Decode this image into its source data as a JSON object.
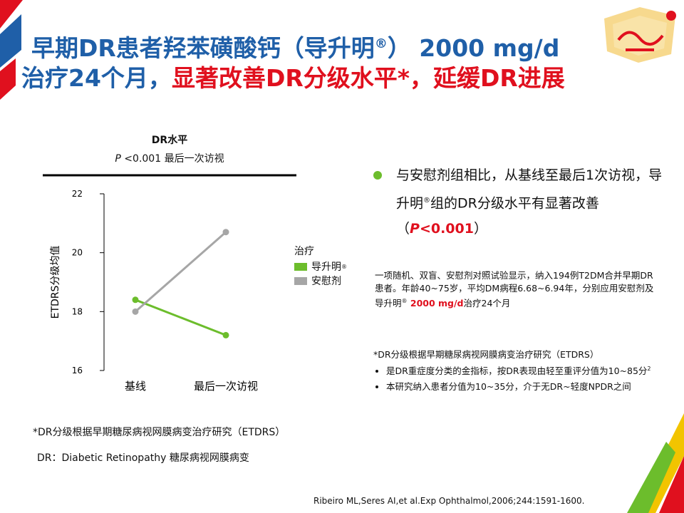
{
  "title": {
    "line1": "早期DR患者羟苯磺酸钙（导升明",
    "line1_reg": "®",
    "line1_end": "） 2000 mg/d",
    "line2_part1": "治疗24个月，",
    "line2_part2": "显著改善DR分级水平*，延缓DR进展"
  },
  "chart_data": {
    "type": "line",
    "title": "DR水平",
    "subtitle_p": "P",
    "subtitle_rest": " <0.001 最后一次访视",
    "ylabel": "ETDRS分级均值",
    "xlabel": "",
    "ylim": [
      16,
      22
    ],
    "yticks": [
      "16",
      "18",
      "20",
      "22"
    ],
    "categories": [
      "基线",
      "最后一次访视"
    ],
    "legend_title": "治疗",
    "legend_placement": "right",
    "grid": false,
    "series": [
      {
        "name": "导升明",
        "name_sup": "®",
        "color": "#6cbd2c",
        "values": [
          18.4,
          17.2
        ]
      },
      {
        "name": "安慰剂",
        "color": "#a6a6a6",
        "values": [
          18.0,
          20.7
        ]
      }
    ]
  },
  "bullet": {
    "text_main": "与安慰剂组相比，从基线至最后1次访视，导升明",
    "text_reg": "®",
    "text_after": "组的DR分级水平有显著改善（",
    "p_italic": "P",
    "p_value": "<0.001",
    "text_close": "）"
  },
  "study": {
    "part1": "一项随机、双盲、安慰剂对照试验显示，纳入194例T2DM合并早期DR患者。年龄40~75岁，平均DM病程6.68~6.94年，分别应用安慰剂及导升明",
    "reg": "®",
    "dose": " 2000 mg/d",
    "part2": "治疗24个月"
  },
  "etdrs": {
    "heading": "*DR分级根据早期糖尿病视网膜病变治疗研究（ETDRS）",
    "item1": "是DR重症度分类的金指标，按DR表现由轻至重评分值为10~85分",
    "item1_sup": "2",
    "item2": "本研究纳入患者分值为10~35分，介于无DR~轻度NPDR之间"
  },
  "footnote": "*DR分级根据早期糖尿病视网膜病变治疗研究（ETDRS）",
  "dr_definition": "DR：Diabetic Retinopathy 糖尿病视网膜病变",
  "reference": "Ribeiro ML,Seres AI,et al.Exp Ophthalmol,2006;244:1591-1600.",
  "colors": {
    "title_blue": "#1f5fa8",
    "accent_red": "#e0101e",
    "bullet_green": "#6cbd2c"
  }
}
